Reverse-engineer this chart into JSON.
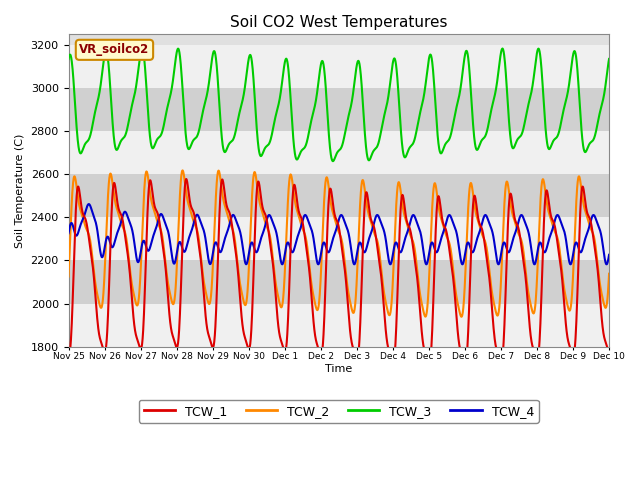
{
  "title": "Soil CO2 West Temperatures",
  "ylabel": "Soil Temperature (C)",
  "xlabel": "Time",
  "label_box_text": "VR_soilco2",
  "ylim": [
    1800,
    3250
  ],
  "yticks": [
    1800,
    2000,
    2200,
    2400,
    2600,
    2800,
    3000,
    3200
  ],
  "line_colors": {
    "TCW_1": "#dd0000",
    "TCW_2": "#ff8800",
    "TCW_3": "#00cc00",
    "TCW_4": "#0000cc"
  },
  "line_width": 1.5,
  "background_color": "#ffffff",
  "plot_bg_color": "#e0e0e0",
  "stripe_light": "#f0f0f0",
  "stripe_dark": "#d0d0d0",
  "total_hours": 360,
  "num_points": 2000,
  "period_hours": 24,
  "x_tick_labels": [
    "Nov 25",
    "Nov 26",
    "Nov 27",
    "Nov 28",
    "Nov 29",
    "Nov 30",
    "Dec 1",
    "Dec 2",
    "Dec 3",
    "Dec 4",
    "Dec 5",
    "Dec 6",
    "Dec 7",
    "Dec 8",
    "Dec 9",
    "Dec 10"
  ],
  "x_tick_positions": [
    0,
    24,
    48,
    72,
    96,
    120,
    144,
    168,
    192,
    216,
    240,
    264,
    288,
    312,
    336,
    360
  ]
}
